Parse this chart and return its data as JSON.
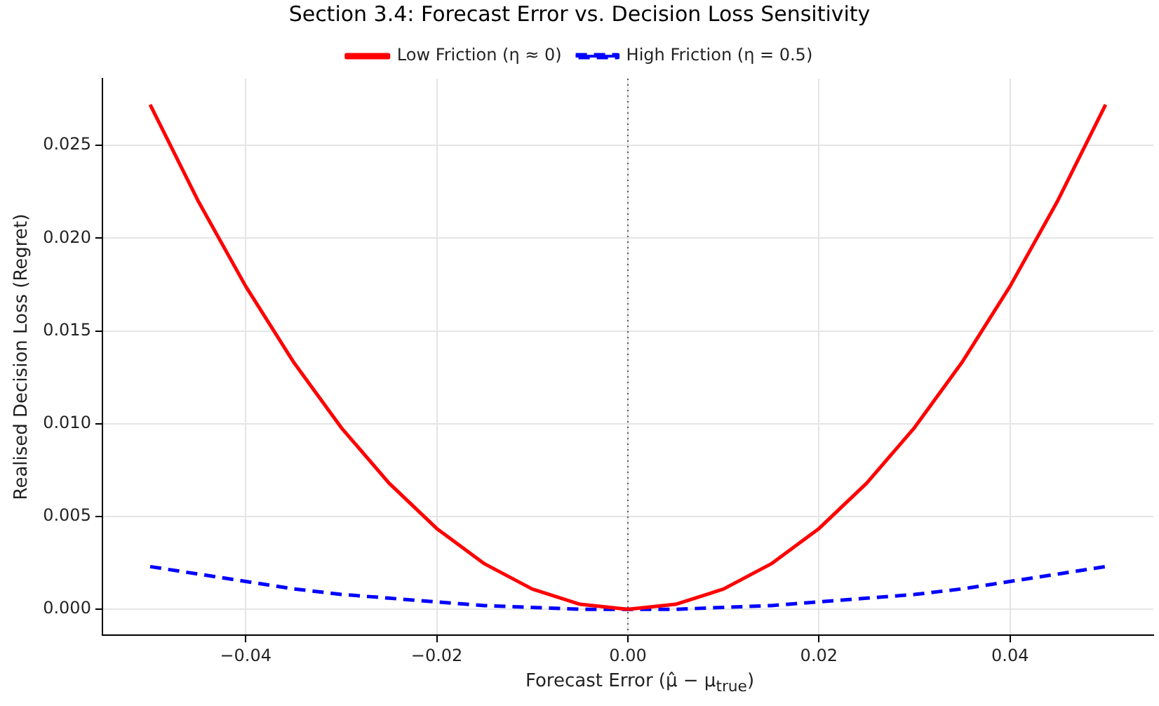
{
  "chart_data": {
    "type": "line",
    "title": "Section 3.4: Forecast Error vs. Decision Loss Sensitivity",
    "xlabel": "Forecast Error (μ̂ − μ$_{true}$)",
    "ylabel": "Realised Decision Loss (Regret)",
    "x": [
      -0.05,
      -0.045,
      -0.04,
      -0.035,
      -0.03,
      -0.025,
      -0.02,
      -0.015,
      -0.01,
      -0.005,
      0,
      0.005,
      0.01,
      0.015,
      0.02,
      0.025,
      0.03,
      0.035,
      0.04,
      0.045,
      0.05
    ],
    "series": [
      {
        "name": "Low Friction (η ≈ 0)",
        "color": "#ff0000",
        "line_style": "solid",
        "values": [
          0.0272,
          0.02203,
          0.01741,
          0.01333,
          0.00979,
          0.0068,
          0.00435,
          0.00245,
          0.00109,
          0.00027,
          0,
          0.00027,
          0.00109,
          0.00245,
          0.00435,
          0.0068,
          0.00979,
          0.01333,
          0.01741,
          0.02203,
          0.0272
        ]
      },
      {
        "name": "High Friction (η = 0.5)",
        "color": "#0000ff",
        "line_style": "dashed",
        "values": [
          0.0023,
          0.0019,
          0.0015,
          0.0011,
          0.0008,
          0.0006,
          0.0004,
          0.0002,
          0.0001,
          0,
          0,
          0,
          0.0001,
          0.0002,
          0.0004,
          0.0006,
          0.0008,
          0.0011,
          0.0015,
          0.0019,
          0.0023
        ]
      }
    ],
    "xlim": [
      -0.055,
      0.055
    ],
    "xticks": [
      {
        "value": -0.04,
        "label": "−0.04"
      },
      {
        "value": -0.02,
        "label": "−0.02"
      },
      {
        "value": 0,
        "label": "0.00"
      },
      {
        "value": 0.02,
        "label": "0.02"
      },
      {
        "value": 0.04,
        "label": "0.04"
      }
    ],
    "ylim": [
      -0.0014,
      0.0286
    ],
    "yticks": [
      {
        "value": 0,
        "label": "0.000"
      },
      {
        "value": 0.005,
        "label": "0.005"
      },
      {
        "value": 0.01,
        "label": "0.010"
      },
      {
        "value": 0.015,
        "label": "0.015"
      },
      {
        "value": 0.02,
        "label": "0.020"
      },
      {
        "value": 0.025,
        "label": "0.025"
      }
    ],
    "ref_lines": [
      {
        "axis": "x",
        "value": 0,
        "color": "#555555",
        "line_style": "dotted"
      }
    ],
    "grid": true,
    "legend": "top",
    "marker": "none"
  }
}
